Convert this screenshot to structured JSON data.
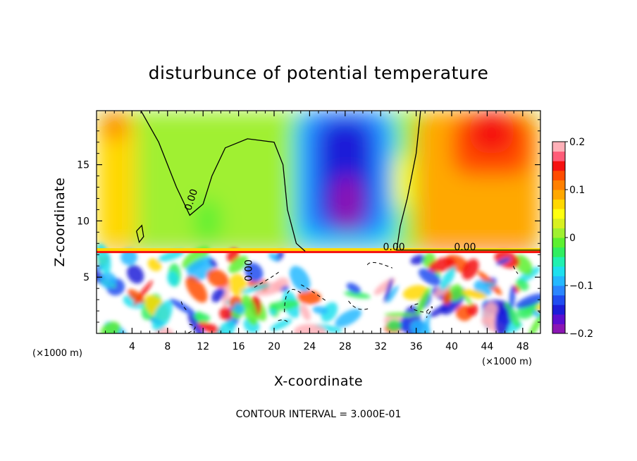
{
  "chart_data": {
    "type": "heatmap",
    "title": "disturbunce of potential temperature",
    "xlabel": "X-coordinate",
    "ylabel": "Z-coordinate",
    "x_units": "(×1000 m)",
    "y_units": "(×1000 m)",
    "xlim": [
      0,
      50
    ],
    "ylim": [
      0,
      19.8
    ],
    "x_ticks": [
      4,
      8,
      12,
      16,
      20,
      24,
      28,
      32,
      36,
      40,
      44,
      48
    ],
    "x_tick_labels": [
      "4",
      "8",
      "12",
      "16",
      "20",
      "24",
      "28",
      "32",
      "36",
      "40",
      "44",
      "48"
    ],
    "y_ticks": [
      5,
      10,
      15
    ],
    "y_tick_labels": [
      "5",
      "10",
      "15"
    ],
    "colorbar": {
      "min": -0.2,
      "max": 0.2,
      "ticks": [
        0.2,
        0.1,
        0,
        -0.1,
        -0.2
      ],
      "tick_labels": [
        "0.2",
        "0.1",
        "0",
        "−0.1",
        "−0.2"
      ],
      "colors": [
        "#8b16b4",
        "#5c0ed0",
        "#1c1cd8",
        "#1f4cf0",
        "#2a86ff",
        "#24b8ff",
        "#1ee0ee",
        "#20f0b0",
        "#30ee60",
        "#5cf030",
        "#a0f030",
        "#d8f020",
        "#ffff10",
        "#ffd800",
        "#ffa800",
        "#ff8000",
        "#ff4c00",
        "#f51010",
        "#ff5c78",
        "#ffb0b8"
      ]
    },
    "tropopause_height": 7.2,
    "regions": [
      {
        "x": [
          0,
          50
        ],
        "z": [
          7.2,
          19.8
        ],
        "value": 0.02
      },
      {
        "x": [
          0,
          4.5
        ],
        "z": [
          7.2,
          19.8
        ],
        "value": 0.07
      },
      {
        "x": [
          0.5,
          3.5
        ],
        "z": [
          17.2,
          19.8
        ],
        "value": 0.1
      },
      {
        "x": [
          11,
          14
        ],
        "z": [
          8,
          12
        ],
        "value": -0.02
      },
      {
        "x": [
          22,
          34
        ],
        "z": [
          7.2,
          19.8
        ],
        "value": -0.08
      },
      {
        "x": [
          23,
          33
        ],
        "z": [
          8.5,
          19.8
        ],
        "value": -0.12
      },
      {
        "x": [
          25,
          31
        ],
        "z": [
          9.5,
          19
        ],
        "value": -0.16
      },
      {
        "x": [
          26.5,
          30
        ],
        "z": [
          9,
          14
        ],
        "value": -0.2
      },
      {
        "x": [
          36,
          50
        ],
        "z": [
          7.2,
          19.8
        ],
        "value": 0.08
      },
      {
        "x": [
          40,
          49
        ],
        "z": [
          14,
          19.5
        ],
        "value": 0.13
      },
      {
        "x": [
          42,
          47
        ],
        "z": [
          16,
          19.8
        ],
        "value": 0.15
      },
      {
        "x": [
          33.5,
          35.5
        ],
        "z": [
          11,
          16
        ],
        "value": 0.05
      },
      {
        "x": [
          0,
          50
        ],
        "z": [
          6.8,
          7.2
        ],
        "value": 0.2
      }
    ],
    "contours": [
      {
        "level": 0.0,
        "label": "0.00",
        "label_at": [
          11,
          11.8
        ],
        "path": [
          [
            5,
            19.8
          ],
          [
            7,
            17
          ],
          [
            9,
            13
          ],
          [
            10.5,
            10.5
          ],
          [
            12,
            11.5
          ],
          [
            13,
            14
          ],
          [
            14.5,
            16.5
          ],
          [
            17,
            17.3
          ],
          [
            20,
            17
          ],
          [
            21,
            15
          ],
          [
            21.5,
            11
          ],
          [
            22.5,
            8
          ],
          [
            23.5,
            7.3
          ]
        ]
      },
      {
        "level": 0.0,
        "label": "0.00",
        "label_at": [
          33.5,
          7.4
        ],
        "path": [
          [
            36.5,
            19.8
          ],
          [
            36,
            16
          ],
          [
            35,
            12
          ],
          [
            34.2,
            9.5
          ],
          [
            33.8,
            7.4
          ],
          [
            50,
            7.4
          ]
        ]
      },
      {
        "level": 0.0,
        "label": "0.00",
        "label_at": [
          41.5,
          7.4
        ],
        "path": []
      },
      {
        "level": 0.0,
        "label": "0.00",
        "label_at": [
          17.5,
          5.6
        ],
        "path": []
      },
      {
        "level": 0.0,
        "label": "",
        "path": [
          [
            4.5,
            9.1
          ],
          [
            5.1,
            9.6
          ],
          [
            5.3,
            8.6
          ],
          [
            4.8,
            8.1
          ],
          [
            4.5,
            9.1
          ]
        ]
      }
    ],
    "contour_interval_label": "CONTOUR INTERVAL = 3.000E-01"
  }
}
